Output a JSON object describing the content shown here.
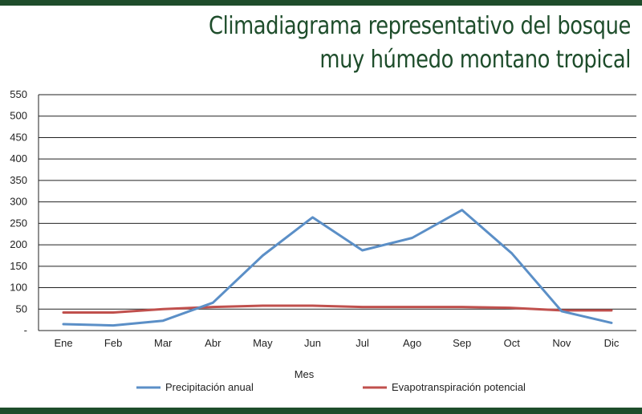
{
  "chart_data": {
    "type": "line",
    "title": "Climadiagrama representativo del bosque muy húmedo montano tropical",
    "title_lines": [
      "Climadiagrama representativo del bosque",
      "muy húmedo montano tropical"
    ],
    "xlabel": "Mes",
    "ylabel": "",
    "categories": [
      "Ene",
      "Feb",
      "Mar",
      "Abr",
      "May",
      "Jun",
      "Jul",
      "Ago",
      "Sep",
      "Oct",
      "Nov",
      "Dic"
    ],
    "yticks": [
      "-",
      "50",
      "100",
      "150",
      "200",
      "250",
      "300",
      "350",
      "400",
      "450",
      "500",
      "550"
    ],
    "ylim": [
      0,
      550
    ],
    "grid": true,
    "legend_position": "bottom",
    "series": [
      {
        "name": "Precipitación anual",
        "color": "#5b8fc7",
        "values": [
          15,
          12,
          23,
          65,
          175,
          264,
          187,
          216,
          281,
          180,
          45,
          18
        ]
      },
      {
        "name": "Evapotranspiración potencial",
        "color": "#c0504d",
        "values": [
          42,
          42,
          50,
          55,
          58,
          58,
          55,
          55,
          55,
          53,
          47,
          47
        ]
      }
    ]
  }
}
